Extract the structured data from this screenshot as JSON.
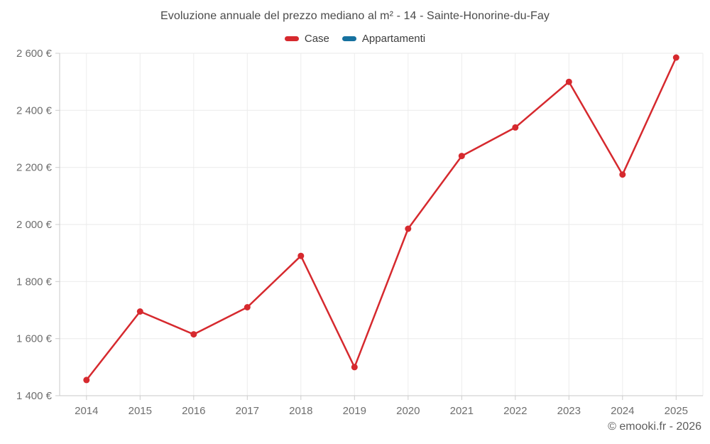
{
  "watermark": "© emooki.fr - 2026",
  "legend": {
    "items": [
      {
        "label": "Case",
        "color": "#d6292e"
      },
      {
        "label": "Appartamenti",
        "color": "#16719f"
      }
    ]
  },
  "chart_data": {
    "type": "line",
    "title": "Evoluzione annuale del prezzo mediano al m² - 14 - Sainte-Honorine-du-Fay",
    "categories": [
      "2014",
      "2015",
      "2016",
      "2017",
      "2018",
      "2019",
      "2020",
      "2021",
      "2022",
      "2023",
      "2024",
      "2025"
    ],
    "series": [
      {
        "name": "Case",
        "color": "#d6292e",
        "values": [
          1455,
          1695,
          1615,
          1710,
          1890,
          1500,
          1985,
          2240,
          2340,
          2500,
          2175,
          2585
        ]
      },
      {
        "name": "Appartamenti",
        "color": "#16719f",
        "values": []
      }
    ],
    "xlabel": "",
    "ylabel": "",
    "ylim": [
      1400,
      2600
    ],
    "y_ticks": [
      1400,
      1600,
      1800,
      2000,
      2200,
      2400,
      2600
    ],
    "y_tick_labels": [
      "1 400 €",
      "1 600 €",
      "1 800 €",
      "2 000 €",
      "2 200 €",
      "2 400 €",
      "2 600 €"
    ],
    "grid": true,
    "legend_position": "top",
    "currency": "€"
  }
}
